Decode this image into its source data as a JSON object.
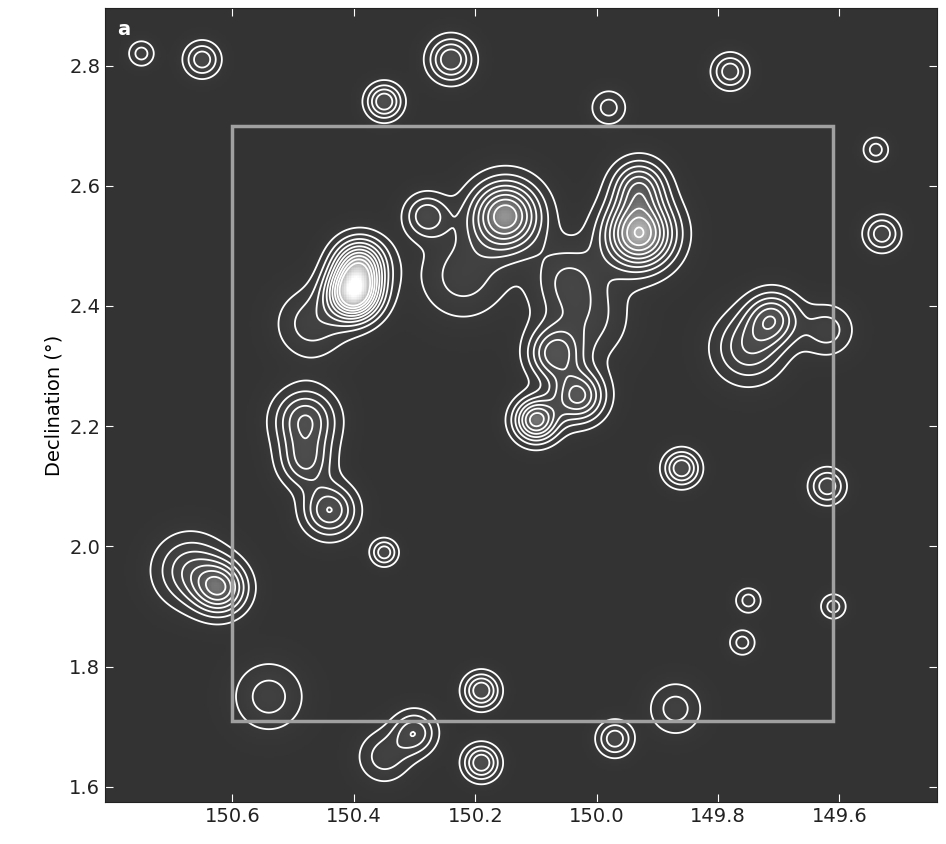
{
  "chart_data": {
    "type": "contour",
    "panel_label": "a",
    "y_label": "Declination (°)",
    "xlim": [
      150.81,
      149.44
    ],
    "ylim": [
      1.575,
      2.895
    ],
    "xticks": [
      150.6,
      150.4,
      150.2,
      150.0,
      149.8,
      149.6
    ],
    "yticks": [
      1.6,
      1.8,
      2.0,
      2.2,
      2.4,
      2.6,
      2.8
    ],
    "levels": [
      0.8,
      1.6,
      2.4,
      3.2,
      4.0,
      4.8,
      5.6,
      6.4,
      7.2,
      8.0
    ],
    "survey_box": {
      "ra": [
        150.6,
        149.61
      ],
      "dec": [
        1.71,
        2.7
      ],
      "color": "#a0a0a0"
    },
    "color": "#ffffff",
    "peaks": [
      {
        "ra": 150.4,
        "dec": 2.42,
        "amplitude": 9,
        "width": 0.03
      },
      {
        "ra": 150.39,
        "dec": 2.47,
        "amplitude": 6,
        "width": 0.03
      },
      {
        "ra": 150.15,
        "dec": 2.55,
        "amplitude": 7,
        "width": 0.04
      },
      {
        "ra": 149.93,
        "dec": 2.52,
        "amplitude": 8,
        "width": 0.04
      },
      {
        "ra": 149.93,
        "dec": 2.6,
        "amplitude": 4,
        "width": 0.03
      },
      {
        "ra": 150.1,
        "dec": 2.21,
        "amplitude": 6,
        "width": 0.025
      },
      {
        "ra": 150.03,
        "dec": 2.25,
        "amplitude": 5,
        "width": 0.03
      },
      {
        "ra": 150.07,
        "dec": 2.32,
        "amplitude": 4,
        "width": 0.03
      },
      {
        "ra": 149.71,
        "dec": 2.38,
        "amplitude": 4,
        "width": 0.03
      },
      {
        "ra": 149.75,
        "dec": 2.33,
        "amplitude": 3,
        "width": 0.04
      },
      {
        "ra": 149.62,
        "dec": 2.36,
        "amplitude": 2,
        "width": 0.03
      },
      {
        "ra": 150.48,
        "dec": 2.21,
        "amplitude": 4,
        "width": 0.035
      },
      {
        "ra": 150.48,
        "dec": 2.14,
        "amplitude": 3,
        "width": 0.03
      },
      {
        "ra": 150.44,
        "dec": 2.06,
        "amplitude": 4,
        "width": 0.03
      },
      {
        "ra": 150.62,
        "dec": 1.93,
        "amplitude": 5,
        "width": 0.03
      },
      {
        "ra": 150.67,
        "dec": 1.96,
        "amplitude": 3,
        "width": 0.04
      },
      {
        "ra": 150.22,
        "dec": 2.45,
        "amplitude": 2,
        "width": 0.05
      },
      {
        "ra": 150.28,
        "dec": 2.55,
        "amplitude": 3,
        "width": 0.025
      },
      {
        "ra": 150.35,
        "dec": 1.99,
        "amplitude": 3,
        "width": 0.015
      },
      {
        "ra": 149.86,
        "dec": 2.13,
        "amplitude": 4,
        "width": 0.02
      },
      {
        "ra": 150.19,
        "dec": 1.64,
        "amplitude": 4,
        "width": 0.02
      },
      {
        "ra": 150.19,
        "dec": 1.76,
        "amplitude": 4,
        "width": 0.02
      },
      {
        "ra": 150.3,
        "dec": 1.69,
        "amplitude": 3,
        "width": 0.025
      },
      {
        "ra": 150.35,
        "dec": 1.65,
        "amplitude": 2,
        "width": 0.03
      },
      {
        "ra": 149.97,
        "dec": 1.68,
        "amplitude": 3,
        "width": 0.02
      },
      {
        "ra": 149.87,
        "dec": 1.73,
        "amplitude": 2,
        "width": 0.03
      },
      {
        "ra": 150.65,
        "dec": 2.81,
        "amplitude": 3,
        "width": 0.02
      },
      {
        "ra": 150.24,
        "dec": 2.81,
        "amplitude": 4,
        "width": 0.025
      },
      {
        "ra": 150.35,
        "dec": 2.74,
        "amplitude": 4,
        "width": 0.02
      },
      {
        "ra": 149.78,
        "dec": 2.79,
        "amplitude": 3,
        "width": 0.02
      },
      {
        "ra": 149.98,
        "dec": 2.73,
        "amplitude": 2,
        "width": 0.02
      },
      {
        "ra": 149.53,
        "dec": 2.52,
        "amplitude": 3,
        "width": 0.02
      },
      {
        "ra": 149.54,
        "dec": 2.66,
        "amplitude": 2,
        "width": 0.015
      },
      {
        "ra": 149.62,
        "dec": 2.1,
        "amplitude": 3,
        "width": 0.02
      },
      {
        "ra": 149.61,
        "dec": 1.9,
        "amplitude": 2,
        "width": 0.015
      },
      {
        "ra": 149.75,
        "dec": 1.91,
        "amplitude": 2,
        "width": 0.015
      },
      {
        "ra": 149.76,
        "dec": 1.84,
        "amplitude": 2,
        "width": 0.015
      },
      {
        "ra": 150.47,
        "dec": 2.37,
        "amplitude": 2,
        "width": 0.04
      },
      {
        "ra": 150.02,
        "dec": 2.38,
        "amplitude": 2,
        "width": 0.05
      },
      {
        "ra": 150.05,
        "dec": 2.45,
        "amplitude": 2,
        "width": 0.04
      },
      {
        "ra": 150.75,
        "dec": 2.82,
        "amplitude": 2,
        "width": 0.015
      },
      {
        "ra": 150.54,
        "dec": 1.75,
        "amplitude": 2,
        "width": 0.04
      }
    ]
  }
}
